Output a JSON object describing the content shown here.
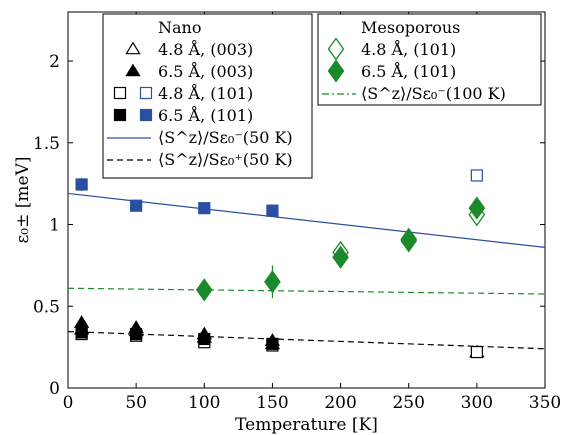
{
  "chart_data": {
    "type": "scatter",
    "xlabel": "Temperature [K]",
    "ylabel": "ε₀± [meV]",
    "xlim": [
      0,
      350
    ],
    "ylim": [
      0,
      2.3
    ],
    "x_ticks": [
      0,
      50,
      100,
      150,
      200,
      250,
      300,
      350
    ],
    "y_ticks": [
      0,
      0.5,
      1,
      1.5,
      2
    ],
    "y_tick_labels": [
      "0",
      "0.5",
      "1",
      "1.5",
      "2"
    ],
    "grid": false,
    "legend_placement": [
      "top-left",
      "top-right"
    ],
    "colors": {
      "black": "#000000",
      "blue": "#2a4fa3",
      "green": "#1a8a2a"
    },
    "legends": [
      {
        "title": "Nano",
        "placement": "top-left",
        "entries": [
          {
            "label": "4.8 Å, (003)",
            "series": [
              "nano_48_003"
            ]
          },
          {
            "label": "6.5 Å, (003)",
            "series": [
              "nano_65_003"
            ]
          },
          {
            "label": "4.8 Å, (101)",
            "series": [
              "nano_48_101_black",
              "nano_48_101_blue"
            ]
          },
          {
            "label": "6.5 Å, (101)",
            "series": [
              "nano_65_101_black",
              "nano_65_101_blue"
            ]
          },
          {
            "label": "⟨S^z⟩/Sε₀⁻(50 K)",
            "series": [
              "fit_minus_50"
            ]
          },
          {
            "label": "⟨S^z⟩/Sε₀⁺(50 K)",
            "series": [
              "fit_plus_50"
            ]
          }
        ]
      },
      {
        "title": "Mesoporous",
        "placement": "top-right",
        "entries": [
          {
            "label": "4.8 Å, (101)",
            "series": [
              "meso_48_101"
            ]
          },
          {
            "label": "6.5 Å, (101)",
            "series": [
              "meso_65_101"
            ]
          },
          {
            "label": "⟨S^z⟩/Sε₀⁻(100 K)",
            "series": [
              "fit_minus_100"
            ]
          }
        ]
      }
    ],
    "series": [
      {
        "id": "nano_48_003",
        "marker": "triangle",
        "fill": false,
        "color": "#000000",
        "points": [
          [
            10,
            0.36
          ],
          [
            50,
            0.35
          ],
          [
            100,
            0.31
          ],
          [
            150,
            0.27
          ],
          [
            300,
            0.22
          ]
        ]
      },
      {
        "id": "nano_65_003",
        "marker": "triangle",
        "fill": true,
        "color": "#000000",
        "points": [
          [
            10,
            0.4
          ],
          [
            50,
            0.37
          ],
          [
            100,
            0.33
          ],
          [
            150,
            0.29
          ]
        ]
      },
      {
        "id": "nano_48_101_black",
        "marker": "square",
        "fill": false,
        "color": "#000000",
        "points": [
          [
            10,
            0.33
          ],
          [
            50,
            0.32
          ],
          [
            100,
            0.28
          ],
          [
            150,
            0.26
          ],
          [
            300,
            0.22
          ]
        ]
      },
      {
        "id": "nano_48_101_blue",
        "marker": "square",
        "fill": false,
        "color": "#2a4fa3",
        "points": [
          [
            300,
            1.3
          ]
        ]
      },
      {
        "id": "nano_65_101_black",
        "marker": "square",
        "fill": true,
        "color": "#000000",
        "points": [
          [
            10,
            0.34
          ],
          [
            50,
            0.33
          ],
          [
            100,
            0.3
          ],
          [
            150,
            0.27
          ]
        ]
      },
      {
        "id": "nano_65_101_blue",
        "marker": "square",
        "fill": true,
        "color": "#2a4fa3",
        "points": [
          [
            10,
            1.245
          ],
          [
            50,
            1.115
          ],
          [
            100,
            1.1
          ],
          [
            150,
            1.085
          ]
        ],
        "yerr": [
          0.04,
          0,
          0,
          0
        ]
      },
      {
        "id": "meso_48_101",
        "marker": "diamond",
        "fill": false,
        "color": "#1a8a2a",
        "points": [
          [
            200,
            0.83
          ],
          [
            250,
            0.91
          ],
          [
            300,
            1.06
          ]
        ]
      },
      {
        "id": "meso_65_101",
        "marker": "diamond",
        "fill": true,
        "color": "#1a8a2a",
        "points": [
          [
            100,
            0.6
          ],
          [
            150,
            0.65
          ],
          [
            200,
            0.8
          ],
          [
            250,
            0.9
          ],
          [
            300,
            1.1
          ]
        ],
        "yerr": [
          0,
          0.1,
          0,
          0,
          0
        ]
      },
      {
        "id": "fit_minus_50",
        "type": "line",
        "style": "solid",
        "color": "#2a4fa3",
        "points": [
          [
            0,
            1.19
          ],
          [
            350,
            0.86
          ]
        ]
      },
      {
        "id": "fit_plus_50",
        "type": "line",
        "style": "dashed",
        "color": "#000000",
        "points": [
          [
            0,
            0.345
          ],
          [
            350,
            0.24
          ]
        ]
      },
      {
        "id": "fit_minus_100",
        "type": "line",
        "style": "dashed",
        "color": "#1a8a2a",
        "points": [
          [
            0,
            0.61
          ],
          [
            350,
            0.575
          ]
        ]
      }
    ]
  }
}
